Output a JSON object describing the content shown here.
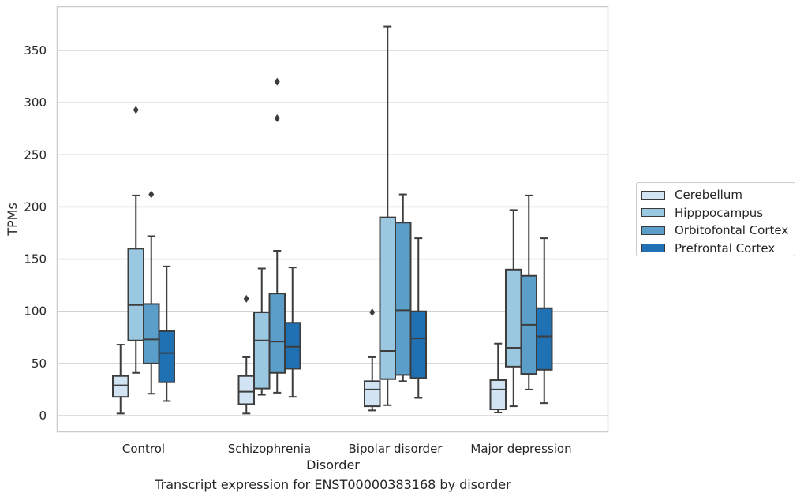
{
  "chart_data": {
    "type": "box",
    "title": "Transcript expression for ENST00000383168 by disorder",
    "xlabel": "Disorder",
    "ylabel": "TPMs",
    "ylim": [
      -15,
      390
    ],
    "yticks": [
      0,
      50,
      100,
      150,
      200,
      250,
      300,
      350
    ],
    "grid": "horizontal",
    "legend_position": "right",
    "categories": [
      "Control",
      "Schizophrenia",
      "Bipolar disorder",
      "Major depression"
    ],
    "series": [
      {
        "name": "Cerebellum",
        "color": "#d2e3f3",
        "boxes": [
          {
            "whisker_low": 2,
            "q1": 18,
            "median": 29,
            "q3": 38,
            "whisker_high": 68,
            "outliers": []
          },
          {
            "whisker_low": 2,
            "q1": 11,
            "median": 23,
            "q3": 38,
            "whisker_high": 56,
            "outliers": [
              112
            ]
          },
          {
            "whisker_low": 5,
            "q1": 9,
            "median": 25,
            "q3": 33,
            "whisker_high": 56,
            "outliers": [
              99
            ]
          },
          {
            "whisker_low": 3,
            "q1": 6,
            "median": 25,
            "q3": 34,
            "whisker_high": 69,
            "outliers": []
          }
        ]
      },
      {
        "name": "Hipppocampus",
        "color": "#9ac8e0",
        "boxes": [
          {
            "whisker_low": 41,
            "q1": 72,
            "median": 106,
            "q3": 160,
            "whisker_high": 211,
            "outliers": [
              293
            ]
          },
          {
            "whisker_low": 20,
            "q1": 26,
            "median": 72,
            "q3": 99,
            "whisker_high": 141,
            "outliers": []
          },
          {
            "whisker_low": 10,
            "q1": 35,
            "median": 62,
            "q3": 190,
            "whisker_high": 373,
            "outliers": []
          },
          {
            "whisker_low": 9,
            "q1": 47,
            "median": 65,
            "q3": 140,
            "whisker_high": 197,
            "outliers": []
          }
        ]
      },
      {
        "name": "Orbitofontal Cortex",
        "color": "#5a9ec9",
        "boxes": [
          {
            "whisker_low": 21,
            "q1": 50,
            "median": 73,
            "q3": 107,
            "whisker_high": 172,
            "outliers": [
              212
            ]
          },
          {
            "whisker_low": 22,
            "q1": 41,
            "median": 71,
            "q3": 117,
            "whisker_high": 158,
            "outliers": [
              320,
              285
            ]
          },
          {
            "whisker_low": 33,
            "q1": 39,
            "median": 101,
            "q3": 185,
            "whisker_high": 212,
            "outliers": []
          },
          {
            "whisker_low": 25,
            "q1": 40,
            "median": 87,
            "q3": 134,
            "whisker_high": 211,
            "outliers": []
          }
        ]
      },
      {
        "name": "Prefrontal Cortex",
        "color": "#2070b4",
        "boxes": [
          {
            "whisker_low": 14,
            "q1": 32,
            "median": 60,
            "q3": 81,
            "whisker_high": 143,
            "outliers": []
          },
          {
            "whisker_low": 18,
            "q1": 45,
            "median": 66,
            "q3": 89,
            "whisker_high": 142,
            "outliers": []
          },
          {
            "whisker_low": 17,
            "q1": 36,
            "median": 74,
            "q3": 100,
            "whisker_high": 170,
            "outliers": []
          },
          {
            "whisker_low": 12,
            "q1": 44,
            "median": 76,
            "q3": 103,
            "whisker_high": 170,
            "outliers": []
          }
        ]
      }
    ]
  }
}
